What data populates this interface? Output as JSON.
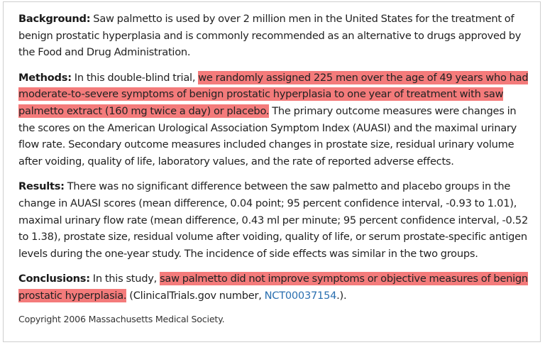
{
  "background": {
    "label": "Background:",
    "text": " Saw palmetto is used by over 2 million men in the United States for the treatment of benign prostatic hyperplasia and is commonly recommended as an alternative to drugs approved by the Food and Drug Administration."
  },
  "methods": {
    "label": "Methods:",
    "text_before": " In this double-blind trial, ",
    "highlight": "we randomly assigned 225 men over the age of 49 years who had moderate-to-severe symptoms of benign prostatic hyperplasia to one year of treatment with saw palmetto extract (160 mg twice a day) or placebo.",
    "text_after": " The primary outcome measures were changes in the scores on the American Urological Association Symptom Index (AUASI) and the maximal urinary flow rate. Secondary outcome measures included changes in prostate size, residual urinary volume after voiding, quality of life, laboratory values, and the rate of reported adverse effects."
  },
  "results": {
    "label": "Results:",
    "text": " There was no significant difference between the saw palmetto and placebo groups in the change in AUASI scores (mean difference, 0.04 point; 95 percent confidence interval, -0.93 to 1.01), maximal urinary flow rate (mean difference, 0.43 ml per minute; 95 percent confidence interval, -0.52 to 1.38), prostate size, residual volume after voiding, quality of life, or serum prostate-specific antigen levels during the one-year study. The incidence of side effects was similar in the two groups."
  },
  "conclusions": {
    "label": "Conclusions:",
    "text_before": " In this study, ",
    "highlight": "saw palmetto did not improve symptoms or objective measures of benign prostatic hyperplasia.",
    "text_mid": " (ClinicalTrials.gov number, ",
    "link": "NCT00037154",
    "text_after": ".)."
  },
  "copyright": "Copyright 2006 Massachusetts Medical Society.",
  "colors": {
    "highlight": "#f47b7b",
    "link": "#2a6fb0",
    "border": "#cfcfcf"
  }
}
